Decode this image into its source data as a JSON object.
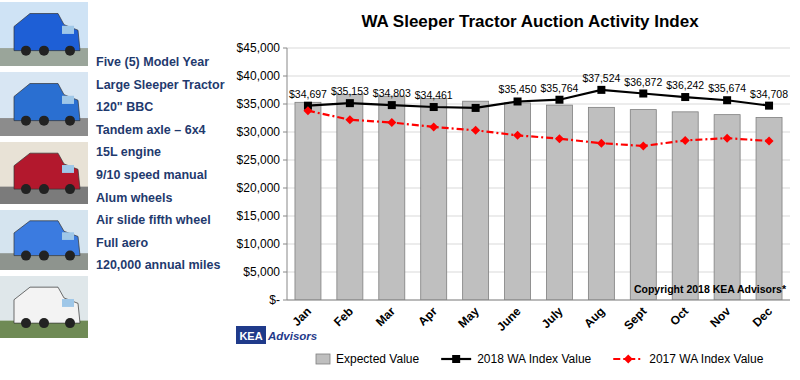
{
  "chart_data": {
    "type": "bar",
    "title": "WA Sleeper Tractor Auction Activity Index",
    "specs": [
      "Five (5) Model Year",
      "Large Sleeper Tractor",
      "120\" BBC",
      "Tandem axle – 6x4",
      "15L engine",
      "9/10 speed manual",
      "Alum wheels",
      "Air slide fifth wheel",
      "Full aero",
      "120,000 annual miles"
    ],
    "annotations": [
      "Copyright 2018 KEA Advisors*"
    ],
    "logo": [
      "KEA",
      "Advisors"
    ],
    "categories": [
      "Jan",
      "Feb",
      "Mar",
      "Apr",
      "May",
      "June",
      "July",
      "Aug",
      "Sept",
      "Oct",
      "Nov",
      "Dec"
    ],
    "series": [
      {
        "name": "Expected Value",
        "type": "bar",
        "color": "#bfbfbf",
        "values": [
          35300,
          36700,
          36400,
          36000,
          35500,
          35200,
          34800,
          34400,
          34000,
          33600,
          33100,
          32600
        ]
      },
      {
        "name": "2018 WA Index Value",
        "type": "line",
        "color": "#000000",
        "marker": "square",
        "line_style": "solid",
        "data_labels": true,
        "values": [
          34697,
          35153,
          34803,
          34461,
          34300,
          35450,
          35764,
          37524,
          36872,
          36242,
          35674,
          34708
        ],
        "value_labels": [
          "$34,697",
          "$35,153",
          "$34,803",
          "$34,461",
          null,
          "$35,450",
          "$35,764",
          "$37,524",
          "$36,872",
          "$36,242",
          "$35,674",
          "$34,708"
        ]
      },
      {
        "name": "2017 WA Index Value",
        "type": "line",
        "color": "#ff0000",
        "marker": "diamond",
        "line_style": "dashdot",
        "values": [
          33800,
          32200,
          31700,
          30900,
          30300,
          29400,
          28800,
          28000,
          27500,
          28500,
          28900,
          28400
        ]
      }
    ],
    "ylim": [
      0,
      45000
    ],
    "yticks": [
      {
        "value": 0,
        "label": "$-"
      },
      {
        "value": 5000,
        "label": "$5,000"
      },
      {
        "value": 10000,
        "label": "$10,000"
      },
      {
        "value": 15000,
        "label": "$15,000"
      },
      {
        "value": 20000,
        "label": "$20,000"
      },
      {
        "value": 25000,
        "label": "$25,000"
      },
      {
        "value": 30000,
        "label": "$30,000"
      },
      {
        "value": 35000,
        "label": "$35,000"
      },
      {
        "value": 40000,
        "label": "$40,000"
      },
      {
        "value": 45000,
        "label": "$45,000"
      }
    ],
    "grid": true,
    "legend": "bottom"
  }
}
